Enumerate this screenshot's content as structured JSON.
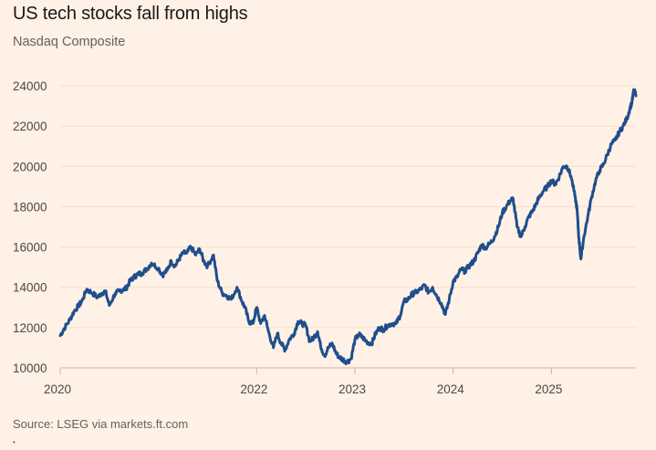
{
  "title": "US tech stocks fall from highs",
  "subtitle": "Nasdaq Composite",
  "source": "Source: LSEG via markets.ft.com",
  "footnote": "•",
  "colors": {
    "background": "#fff1e5",
    "line": "#1f4e8c",
    "grid": "#f2e0d0",
    "axis": "#c9b9a8"
  },
  "chart_data": {
    "type": "line",
    "title": "US tech stocks fall from highs",
    "subtitle": "Nasdaq Composite",
    "xlabel": "",
    "ylabel": "",
    "xlim": [
      2020.0,
      2025.86
    ],
    "ylim": [
      10000,
      24000
    ],
    "yticks": [
      10000,
      12000,
      14000,
      16000,
      18000,
      20000,
      22000,
      24000
    ],
    "ytick_labels": [
      "10000",
      "12000",
      "14000",
      "16000",
      "18000",
      "20000",
      "22000",
      "24000"
    ],
    "xticks": [
      2020,
      2022,
      2023,
      2024,
      2025
    ],
    "xtick_labels": [
      "2020",
      "2022",
      "2023",
      "2024",
      "2025"
    ],
    "grid": true,
    "series": [
      {
        "name": "Nasdaq Composite",
        "x": [
          2020.0,
          2020.04,
          2020.1,
          2020.14,
          2020.19,
          2020.22,
          2020.27,
          2020.33,
          2020.38,
          2020.42,
          2020.46,
          2020.5,
          2020.56,
          2020.6,
          2020.64,
          2020.67,
          2020.71,
          2020.75,
          2020.79,
          2020.83,
          2020.88,
          2020.93,
          2021.0,
          2021.04,
          2021.09,
          2021.13,
          2021.17,
          2021.21,
          2021.25,
          2021.29,
          2021.33,
          2021.38,
          2021.42,
          2021.46,
          2021.5,
          2021.56,
          2021.6,
          2021.65,
          2021.69,
          2021.74,
          2021.8,
          2021.85,
          2021.88,
          2021.92,
          2021.96,
          2022.0,
          2022.04,
          2022.08,
          2022.12,
          2022.17,
          2022.21,
          2022.25,
          2022.29,
          2022.33,
          2022.38,
          2022.42,
          2022.46,
          2022.5,
          2022.54,
          2022.58,
          2022.62,
          2022.65,
          2022.69,
          2022.73,
          2022.77,
          2022.81,
          2022.85,
          2022.88,
          2022.92,
          2022.96,
          2023.0,
          2023.04,
          2023.08,
          2023.12,
          2023.17,
          2023.21,
          2023.25,
          2023.29,
          2023.33,
          2023.38,
          2023.42,
          2023.46,
          2023.5,
          2023.54,
          2023.58,
          2023.62,
          2023.67,
          2023.71,
          2023.75,
          2023.79,
          2023.83,
          2023.88,
          2023.92,
          2023.96,
          2024.0,
          2024.04,
          2024.08,
          2024.12,
          2024.17,
          2024.21,
          2024.25,
          2024.29,
          2024.33,
          2024.38,
          2024.42,
          2024.46,
          2024.5,
          2024.54,
          2024.58,
          2024.61,
          2024.65,
          2024.69,
          2024.73,
          2024.77,
          2024.81,
          2024.85,
          2024.88,
          2024.92,
          2024.96,
          2025.0,
          2025.04,
          2025.08,
          2025.12,
          2025.16,
          2025.2,
          2025.24,
          2025.26,
          2025.28,
          2025.3,
          2025.33,
          2025.37,
          2025.41,
          2025.45,
          2025.49,
          2025.53,
          2025.57,
          2025.61,
          2025.65,
          2025.69,
          2025.73,
          2025.77,
          2025.8,
          2025.82,
          2025.84,
          2025.86
        ],
        "values": [
          11600,
          11950,
          12400,
          12800,
          13100,
          13300,
          13900,
          13700,
          13500,
          13700,
          13800,
          13100,
          13700,
          13800,
          13900,
          13950,
          14300,
          14500,
          14650,
          14700,
          14900,
          15200,
          14950,
          14600,
          14850,
          15300,
          15050,
          15400,
          15700,
          15700,
          16000,
          15600,
          15900,
          15300,
          15050,
          15600,
          14300,
          13700,
          13600,
          13400,
          14000,
          13300,
          13000,
          12300,
          12200,
          13000,
          12200,
          12600,
          11800,
          11000,
          11700,
          11200,
          10900,
          11400,
          11700,
          12300,
          12200,
          12100,
          11300,
          11500,
          11800,
          11100,
          10600,
          11000,
          11200,
          10700,
          10500,
          10400,
          10300,
          10450,
          11400,
          11650,
          11500,
          11300,
          11200,
          11700,
          12000,
          11900,
          12100,
          12200,
          12200,
          12600,
          13300,
          13400,
          13650,
          13750,
          13900,
          14100,
          13750,
          14000,
          13600,
          13200,
          12650,
          13400,
          14300,
          14500,
          14900,
          14800,
          15100,
          15300,
          15700,
          16100,
          15950,
          16200,
          16500,
          17000,
          17700,
          18000,
          18300,
          18400,
          17000,
          16500,
          17000,
          17500,
          17800,
          18200,
          18500,
          18800,
          19000,
          19300,
          19100,
          19500,
          20000,
          20000,
          19500,
          18500,
          17900,
          16400,
          15400,
          16500,
          17500,
          18500,
          19300,
          19800,
          20100,
          20600,
          21100,
          21300,
          21700,
          22000,
          22400,
          22900,
          23200,
          23800,
          23500
        ]
      }
    ]
  }
}
